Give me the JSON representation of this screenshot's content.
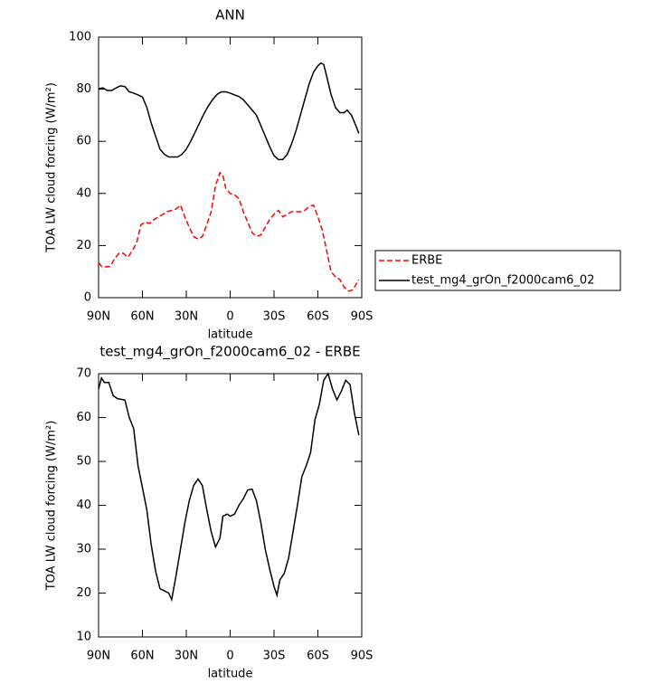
{
  "chart_data": [
    {
      "type": "line",
      "title": "ANN",
      "xlabel": "latitude",
      "ylabel": "TOA LW cloud forcing (W/m²)",
      "xlim": [
        90,
        -90
      ],
      "xticks": [
        {
          "value": 90,
          "label": "90N"
        },
        {
          "value": 60,
          "label": "60N"
        },
        {
          "value": 30,
          "label": "30N"
        },
        0,
        {
          "value": -30,
          "label": "30S"
        },
        {
          "value": -60,
          "label": "60S"
        },
        {
          "value": -90,
          "label": "90S"
        }
      ],
      "ylim": [
        0,
        100
      ],
      "yticks": [
        0,
        20,
        40,
        60,
        80,
        100
      ],
      "legend": "outside-right",
      "series": [
        {
          "name": "ERBE",
          "color": "#ff0000",
          "dash": true,
          "x": [
            90,
            88,
            85,
            82,
            79,
            76,
            73,
            70,
            67,
            64,
            61,
            58,
            55,
            52,
            49,
            46,
            43,
            40,
            37,
            34,
            31,
            28,
            25,
            22,
            19,
            16,
            13,
            10,
            7,
            5,
            3,
            0,
            -3,
            -6,
            -9,
            -12,
            -15,
            -18,
            -21,
            -24,
            -27,
            -30,
            -33,
            -36,
            -39,
            -42,
            -45,
            -48,
            -51,
            -54,
            -57,
            -60,
            -63,
            -66,
            -69,
            -72,
            -75,
            -78,
            -81,
            -84,
            -88
          ],
          "values": [
            13.5,
            12,
            11.8,
            12,
            15,
            17,
            17,
            15.5,
            18,
            21,
            28,
            29,
            28.5,
            30,
            31,
            32,
            33,
            33.5,
            34,
            35.5,
            31,
            27,
            23.5,
            22.5,
            23.5,
            28,
            33,
            43,
            48,
            47,
            42,
            40,
            39.5,
            38,
            33,
            29,
            25,
            23.5,
            24,
            27,
            30,
            32,
            33.5,
            31,
            32,
            33,
            33,
            33,
            33.5,
            35,
            35.5,
            31,
            26,
            18,
            10,
            8,
            7,
            4,
            2.5,
            3,
            7
          ]
        },
        {
          "name": "test_mg4_grOn_f2000cam6_02",
          "color": "#000000",
          "dash": false,
          "x": [
            90,
            87,
            84,
            81,
            78,
            75,
            72,
            69,
            66,
            63,
            60,
            57,
            54,
            51,
            48,
            45,
            42,
            39,
            36,
            33,
            30,
            27,
            24,
            21,
            18,
            15,
            12,
            9,
            6,
            3,
            0,
            -3,
            -6,
            -9,
            -12,
            -15,
            -18,
            -21,
            -24,
            -27,
            -30,
            -33,
            -36,
            -39,
            -42,
            -45,
            -48,
            -51,
            -54,
            -57,
            -60,
            -62,
            -64,
            -66,
            -69,
            -72,
            -75,
            -78,
            -80,
            -83,
            -86,
            -88
          ],
          "values": [
            80.2,
            80.5,
            79.5,
            79.5,
            80.5,
            81.3,
            81,
            79,
            78.5,
            77.8,
            77,
            73,
            67,
            62,
            57,
            55,
            54,
            54,
            54,
            55,
            57,
            60,
            63.5,
            67,
            70.5,
            73.5,
            76,
            78,
            79,
            79,
            78.5,
            77.8,
            77.2,
            76,
            74,
            72,
            70,
            66,
            62,
            58,
            54.5,
            53,
            53,
            55,
            59,
            64,
            70,
            76,
            82,
            86.5,
            89,
            90,
            89.5,
            85,
            78,
            73,
            71,
            71,
            72,
            70,
            66,
            63
          ]
        }
      ]
    },
    {
      "type": "line",
      "title": "test_mg4_grOn_f2000cam6_02 - ERBE",
      "xlabel": "latitude",
      "ylabel": "TOA LW cloud forcing (W/m²)",
      "xlim": [
        90,
        -90
      ],
      "xticks": [
        {
          "value": 90,
          "label": "90N"
        },
        {
          "value": 60,
          "label": "60N"
        },
        {
          "value": 30,
          "label": "30N"
        },
        0,
        {
          "value": -30,
          "label": "30S"
        },
        {
          "value": -60,
          "label": "60S"
        },
        {
          "value": -90,
          "label": "90S"
        }
      ],
      "ylim": [
        10,
        70
      ],
      "yticks": [
        10,
        20,
        30,
        40,
        50,
        60,
        70
      ],
      "series": [
        {
          "color": "#000000",
          "dash": false,
          "x": [
            90,
            88,
            86,
            83,
            80,
            77,
            72,
            69,
            66,
            63,
            60,
            57,
            54,
            51,
            48,
            45,
            42,
            40,
            37,
            34,
            31,
            28,
            25,
            22,
            19,
            16,
            13,
            10,
            7,
            5,
            2,
            0,
            -3,
            -6,
            -9,
            -12,
            -15,
            -18,
            -21,
            -24,
            -27,
            -30,
            -32,
            -34,
            -37,
            -40,
            -43,
            -46,
            -49,
            -52,
            -55,
            -58,
            -61,
            -64,
            -67,
            -70,
            -73,
            -76,
            -79,
            -82,
            -85,
            -88
          ],
          "values": [
            66.5,
            69,
            68,
            68,
            65,
            64.3,
            64,
            60,
            57.5,
            49,
            44,
            39,
            31,
            25,
            21,
            20.5,
            20,
            18.5,
            24,
            30,
            36,
            41,
            44.5,
            46,
            44.5,
            39,
            34,
            30.5,
            32.5,
            37.5,
            38,
            37.5,
            38,
            40,
            41.5,
            43.5,
            43.7,
            41,
            36,
            30,
            25.5,
            21.5,
            19.5,
            23,
            24.5,
            28,
            34,
            40,
            46.5,
            49,
            52,
            59.5,
            63,
            68.5,
            70,
            66.5,
            64,
            66,
            68.5,
            67.5,
            61,
            56
          ]
        }
      ]
    }
  ]
}
